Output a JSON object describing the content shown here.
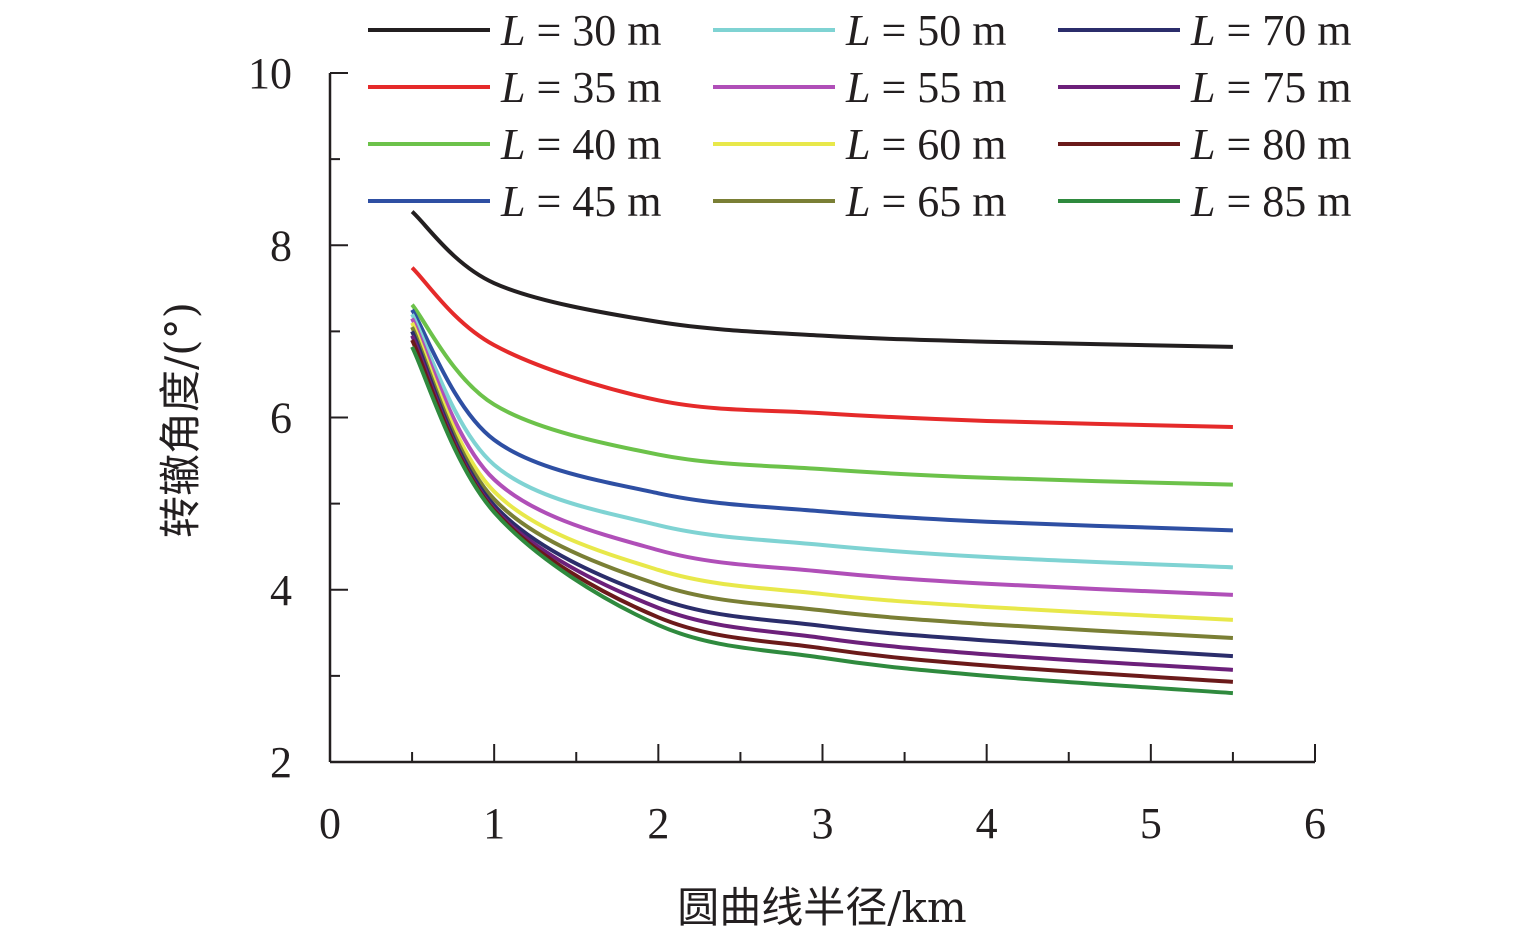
{
  "chart_data": {
    "type": "line",
    "title": "",
    "xlabel": "圆曲线半径/km",
    "ylabel": "转辙角度/(°)",
    "xlim": [
      0,
      6
    ],
    "ylim": [
      2,
      10
    ],
    "xticks": [
      "0",
      "1",
      "2",
      "3",
      "4",
      "5",
      "6"
    ],
    "yticks": [
      "2",
      "4",
      "6",
      "8",
      "10"
    ],
    "grid": false,
    "legend_position": "top",
    "x": [
      0.5,
      1,
      2,
      3,
      4,
      5.5
    ],
    "series": [
      {
        "name": "L = 30 m",
        "prefix": "L",
        "rest": " = 30 m",
        "color": "#231f20",
        "values": [
          8.39,
          7.56,
          7.11,
          6.95,
          6.88,
          6.82
        ]
      },
      {
        "name": "L = 35 m",
        "prefix": "L",
        "rest": " = 35 m",
        "color": "#e52a2a",
        "values": [
          7.74,
          6.84,
          6.2,
          6.05,
          5.96,
          5.89
        ]
      },
      {
        "name": "L = 40 m",
        "prefix": "L",
        "rest": " = 40 m",
        "color": "#6cc24a",
        "values": [
          7.31,
          6.15,
          5.57,
          5.4,
          5.3,
          5.22
        ]
      },
      {
        "name": "L = 45 m",
        "prefix": "L",
        "rest": " = 45 m",
        "color": "#2e4fa3",
        "values": [
          7.25,
          5.74,
          5.12,
          4.91,
          4.79,
          4.69
        ]
      },
      {
        "name": "L = 50 m",
        "prefix": "L",
        "rest": " = 50 m",
        "color": "#7fd3d3",
        "values": [
          7.2,
          5.45,
          4.75,
          4.52,
          4.38,
          4.26
        ]
      },
      {
        "name": "L = 55 m",
        "prefix": "L",
        "rest": " = 55 m",
        "color": "#b04fb8",
        "values": [
          7.15,
          5.28,
          4.46,
          4.21,
          4.07,
          3.94
        ]
      },
      {
        "name": "L = 60 m",
        "prefix": "L",
        "rest": " = 60 m",
        "color": "#e8e84a",
        "values": [
          7.1,
          5.14,
          4.23,
          3.95,
          3.8,
          3.65
        ]
      },
      {
        "name": "L = 65 m",
        "prefix": "L",
        "rest": " = 65 m",
        "color": "#7a7f35",
        "values": [
          7.05,
          5.05,
          4.06,
          3.76,
          3.6,
          3.44
        ]
      },
      {
        "name": "L = 70 m",
        "prefix": "L",
        "rest": " = 70 m",
        "color": "#2b2d6b",
        "values": [
          7.0,
          4.98,
          3.9,
          3.58,
          3.41,
          3.23
        ]
      },
      {
        "name": "L = 75 m",
        "prefix": "L",
        "rest": " = 75 m",
        "color": "#6c207a",
        "values": [
          6.95,
          4.94,
          3.79,
          3.44,
          3.25,
          3.07
        ]
      },
      {
        "name": "L = 80 m",
        "prefix": "L",
        "rest": " = 80 m",
        "color": "#6b1a1a",
        "values": [
          6.9,
          4.92,
          3.68,
          3.32,
          3.12,
          2.93
        ]
      },
      {
        "name": "L = 85 m",
        "prefix": "L",
        "rest": " = 85 m",
        "color": "#2f8a3e",
        "values": [
          6.82,
          4.9,
          3.59,
          3.21,
          3.0,
          2.8
        ]
      }
    ]
  }
}
